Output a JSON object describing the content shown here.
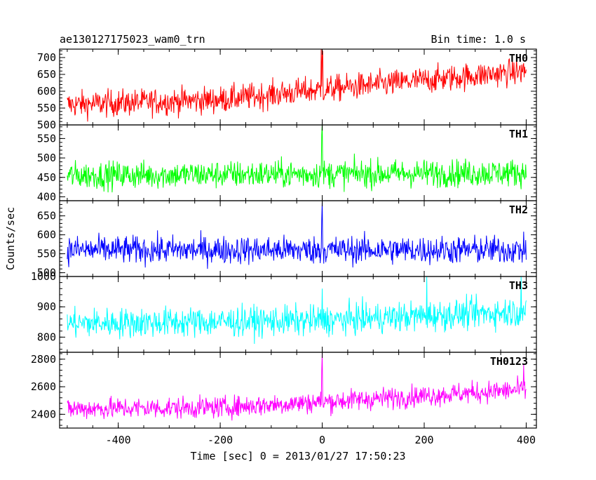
{
  "chart_data": {
    "type": "line",
    "title": "ae130127175023_wam0_trn",
    "bin_label": "Bin time: 1.0 s",
    "xlabel": "Time [sec] 0 = 2013/01/27 17:50:23",
    "ylabel": "Counts/sec",
    "xlim": [
      -515,
      420
    ],
    "x_ticks": [
      -400,
      -200,
      0,
      200,
      400
    ],
    "x_start": -500,
    "x_end": 400,
    "panels": [
      {
        "name": "TH0",
        "color": "#ff0000",
        "ylim": [
          500,
          725
        ],
        "y_ticks": [
          500,
          550,
          600,
          650,
          700
        ],
        "trend": [
          [
            -500,
            560
          ],
          [
            -200,
            575
          ],
          [
            0,
            605
          ],
          [
            400,
            660
          ]
        ],
        "noise": 28,
        "spikes": [
          [
            -2,
            725
          ],
          [
            1,
            720
          ],
          [
            0,
            715
          ]
        ]
      },
      {
        "name": "TH1",
        "color": "#00ff00",
        "ylim": [
          390,
          585
        ],
        "y_ticks": [
          400,
          450,
          500,
          550
        ],
        "trend": [
          [
            -500,
            455
          ],
          [
            400,
            462
          ]
        ],
        "noise": 25,
        "spikes": [
          [
            0,
            590
          ],
          [
            -1,
            560
          ]
        ]
      },
      {
        "name": "TH2",
        "color": "#0000ff",
        "ylim": [
          490,
          690
        ],
        "y_ticks": [
          500,
          550,
          600,
          650
        ],
        "trend": [
          [
            -500,
            560
          ],
          [
            400,
            560
          ]
        ],
        "noise": 26,
        "spikes": [
          [
            0,
            690
          ],
          [
            -1,
            640
          ]
        ]
      },
      {
        "name": "TH3",
        "color": "#00ffff",
        "ylim": [
          750,
          1000
        ],
        "y_ticks": [
          800,
          900,
          1000
        ],
        "trend": [
          [
            -500,
            845
          ],
          [
            0,
            855
          ],
          [
            400,
            885
          ]
        ],
        "noise": 35,
        "spikes": [
          [
            205,
            1000
          ],
          [
            390,
            1000
          ],
          [
            0,
            960
          ]
        ]
      },
      {
        "name": "TH0123",
        "color": "#ff00ff",
        "ylim": [
          2300,
          2850
        ],
        "y_ticks": [
          2400,
          2600,
          2800
        ],
        "trend": [
          [
            -500,
            2440
          ],
          [
            -200,
            2450
          ],
          [
            0,
            2490
          ],
          [
            400,
            2580
          ]
        ],
        "noise": 55,
        "spikes": [
          [
            0,
            2850
          ],
          [
            -1,
            2720
          ],
          [
            395,
            2760
          ]
        ]
      }
    ],
    "grid": false,
    "legend": "panel labels at top-right of each panel"
  }
}
